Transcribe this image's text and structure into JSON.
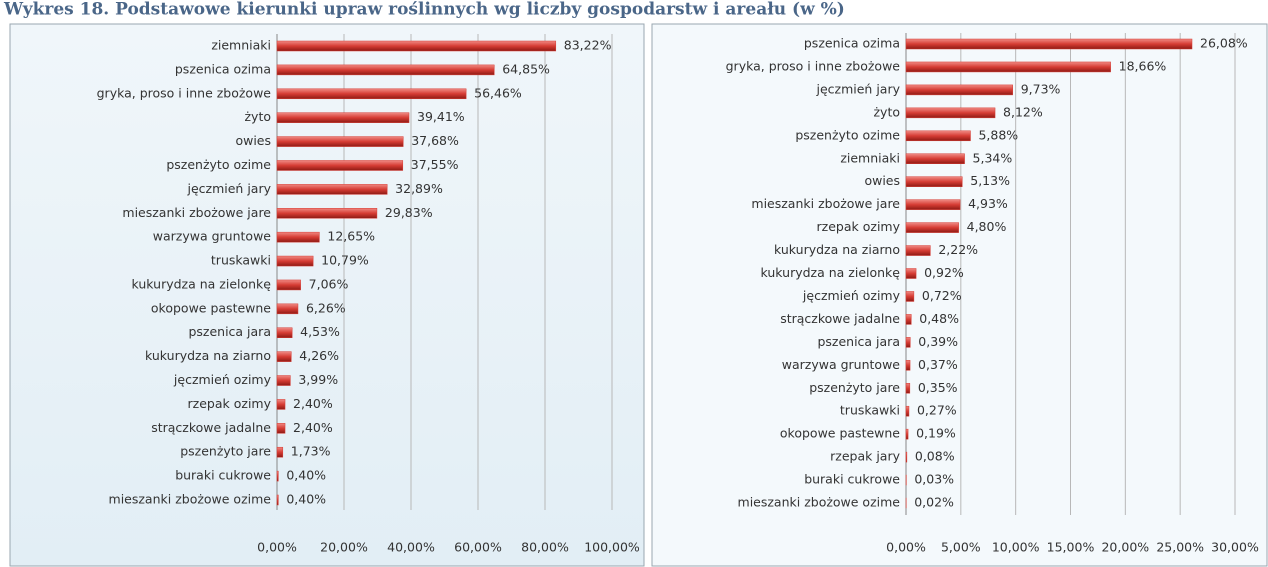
{
  "title": "Wykres 18. Podstawowe kierunki upraw roślinnych wg liczby gospodarstw i areału (w %)",
  "chart_data": [
    {
      "type": "bar",
      "orientation": "horizontal",
      "color": "#d63c34",
      "grid": true,
      "categories": [
        "ziemniaki",
        "pszenica ozima",
        "gryka, proso i inne zbożowe",
        "żyto",
        "owies",
        "pszenżyto ozime",
        "jęczmień jary",
        "mieszanki zbożowe jare",
        "warzywa gruntowe",
        "truskawki",
        "kukurydza na zielonkę",
        "okopowe pastewne",
        "pszenica jara",
        "kukurydza na ziarno",
        "jęczmień ozimy",
        "rzepak ozimy",
        "strączkowe jadalne",
        "pszenżyto jare",
        "buraki cukrowe",
        "mieszanki zbożowe ozime"
      ],
      "values": [
        83.22,
        64.85,
        56.46,
        39.41,
        37.68,
        37.55,
        32.89,
        29.83,
        12.65,
        10.79,
        7.06,
        6.26,
        4.53,
        4.26,
        3.99,
        2.4,
        2.4,
        1.73,
        0.4,
        0.4
      ],
      "value_labels": [
        "83,22%",
        "64,85%",
        "56,46%",
        "39,41%",
        "37,68%",
        "37,55%",
        "32,89%",
        "29,83%",
        "12,65%",
        "10,79%",
        "7,06%",
        "6,26%",
        "4,53%",
        "4,26%",
        "3,99%",
        "2,40%",
        "2,40%",
        "1,73%",
        "0,40%",
        "0,40%"
      ],
      "xlim": [
        0,
        100
      ],
      "xticks": [
        {
          "value": 0,
          "label": "0,00%"
        },
        {
          "value": 20,
          "label": "20,00%"
        },
        {
          "value": 40,
          "label": "40,00%"
        },
        {
          "value": 60,
          "label": "60,00%"
        },
        {
          "value": 80,
          "label": "80,00%"
        },
        {
          "value": 100,
          "label": "100,00%"
        }
      ]
    },
    {
      "type": "bar",
      "orientation": "horizontal",
      "color": "#d63c34",
      "grid": true,
      "categories": [
        "pszenica ozima",
        "gryka, proso i inne zbożowe",
        "jęczmień jary",
        "żyto",
        "pszenżyto ozime",
        "ziemniaki",
        "owies",
        "mieszanki zbożowe jare",
        "rzepak ozimy",
        "kukurydza na ziarno",
        "kukurydza na zielonkę",
        "jęczmień ozimy",
        "strączkowe jadalne",
        "pszenica jara",
        "warzywa gruntowe",
        "pszenżyto jare",
        "truskawki",
        "okopowe pastewne",
        "rzepak jary",
        "buraki cukrowe",
        "mieszanki zbożowe ozime"
      ],
      "values": [
        26.08,
        18.66,
        9.73,
        8.12,
        5.88,
        5.34,
        5.13,
        4.93,
        4.8,
        2.22,
        0.92,
        0.72,
        0.48,
        0.39,
        0.37,
        0.35,
        0.27,
        0.19,
        0.08,
        0.03,
        0.02
      ],
      "value_labels": [
        "26,08%",
        "18,66%",
        "9,73%",
        "8,12%",
        "5,88%",
        "5,34%",
        "5,13%",
        "4,93%",
        "4,80%",
        "2,22%",
        "0,92%",
        "0,72%",
        "0,48%",
        "0,39%",
        "0,37%",
        "0,35%",
        "0,27%",
        "0,19%",
        "0,08%",
        "0,03%",
        "0,02%"
      ],
      "xlim": [
        0,
        30
      ],
      "xticks": [
        {
          "value": 0,
          "label": "0,00%"
        },
        {
          "value": 5,
          "label": "5,00%"
        },
        {
          "value": 10,
          "label": "10,00%"
        },
        {
          "value": 15,
          "label": "15,00%"
        },
        {
          "value": 20,
          "label": "20,00%"
        },
        {
          "value": 25,
          "label": "25,00%"
        },
        {
          "value": 30,
          "label": "30,00%"
        }
      ]
    }
  ]
}
